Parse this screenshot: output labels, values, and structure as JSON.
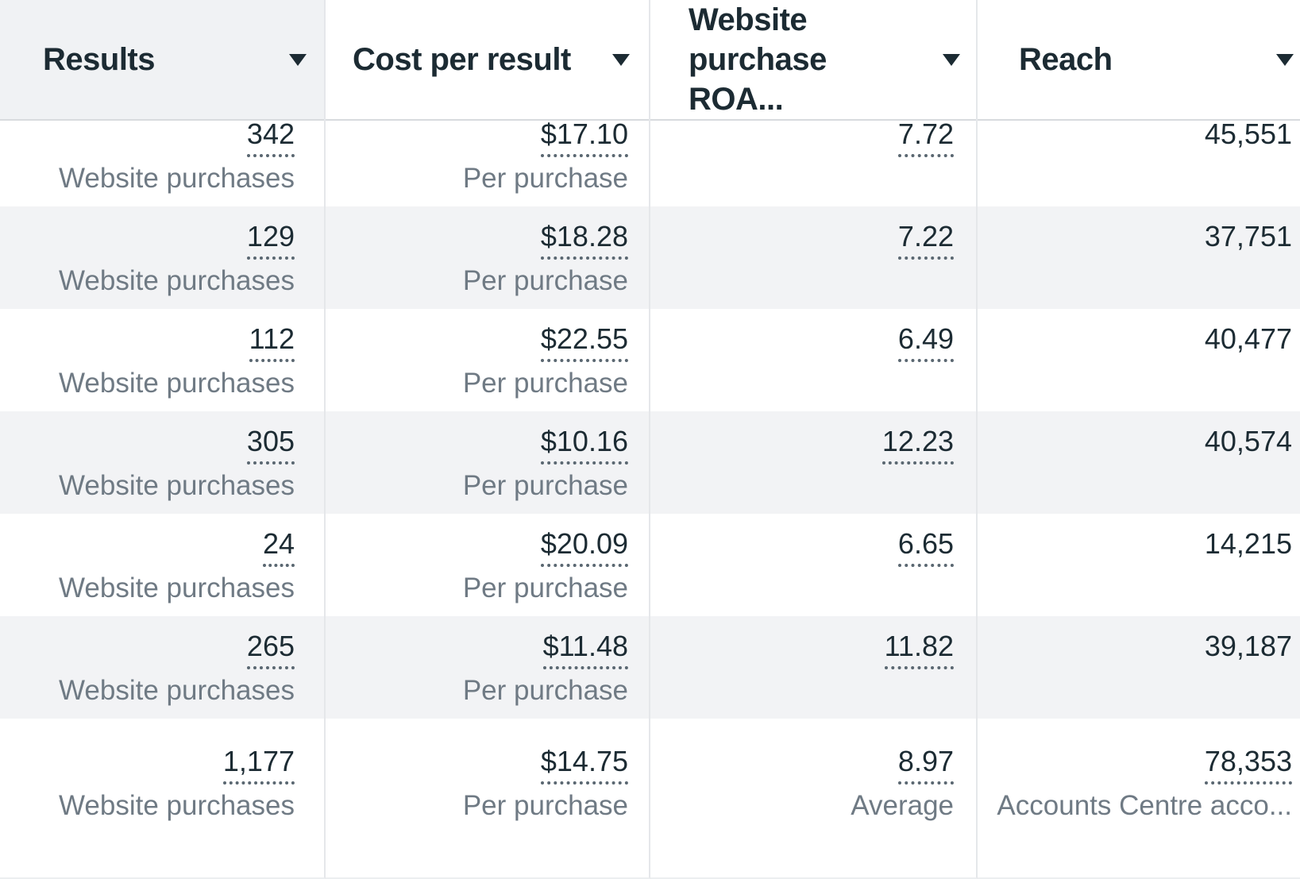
{
  "table": {
    "columns": [
      {
        "label": "Results",
        "sorted": true,
        "sort_icon": "caret-down"
      },
      {
        "label": "Cost per result",
        "sorted": false,
        "sort_icon": "caret-down"
      },
      {
        "label": "Website purchase ROA...",
        "sorted": false,
        "sort_icon": "caret-down"
      },
      {
        "label": "Reach",
        "sorted": false,
        "sort_icon": "caret-down"
      }
    ],
    "rows": [
      {
        "results": "342",
        "results_label": "Website purchases",
        "cost": "$17.10",
        "cost_label": "Per purchase",
        "roas": "7.72",
        "reach": "45,551"
      },
      {
        "results": "129",
        "results_label": "Website purchases",
        "cost": "$18.28",
        "cost_label": "Per purchase",
        "roas": "7.22",
        "reach": "37,751"
      },
      {
        "results": "112",
        "results_label": "Website purchases",
        "cost": "$22.55",
        "cost_label": "Per purchase",
        "roas": "6.49",
        "reach": "40,477"
      },
      {
        "results": "305",
        "results_label": "Website purchases",
        "cost": "$10.16",
        "cost_label": "Per purchase",
        "roas": "12.23",
        "reach": "40,574"
      },
      {
        "results": "24",
        "results_label": "Website purchases",
        "cost": "$20.09",
        "cost_label": "Per purchase",
        "roas": "6.65",
        "reach": "14,215"
      },
      {
        "results": "265",
        "results_label": "Website purchases",
        "cost": "$11.48",
        "cost_label": "Per purchase",
        "roas": "11.82",
        "reach": "39,187"
      }
    ],
    "summary": {
      "results": "1,177",
      "results_label": "Website purchases",
      "cost": "$14.75",
      "cost_label": "Per purchase",
      "roas": "8.97",
      "roas_label": "Average",
      "reach": "78,353",
      "reach_label": "Accounts Centre acco..."
    }
  },
  "colors": {
    "primary_text": "#1c2b33",
    "secondary_text": "#6f7a84",
    "row_stripe_bg": "#f2f3f5",
    "sorted_header_bg": "#f0f2f4",
    "column_border": "#e5e7ea",
    "header_border": "#d8dbde",
    "tooltip_underline": "#5a6771"
  }
}
